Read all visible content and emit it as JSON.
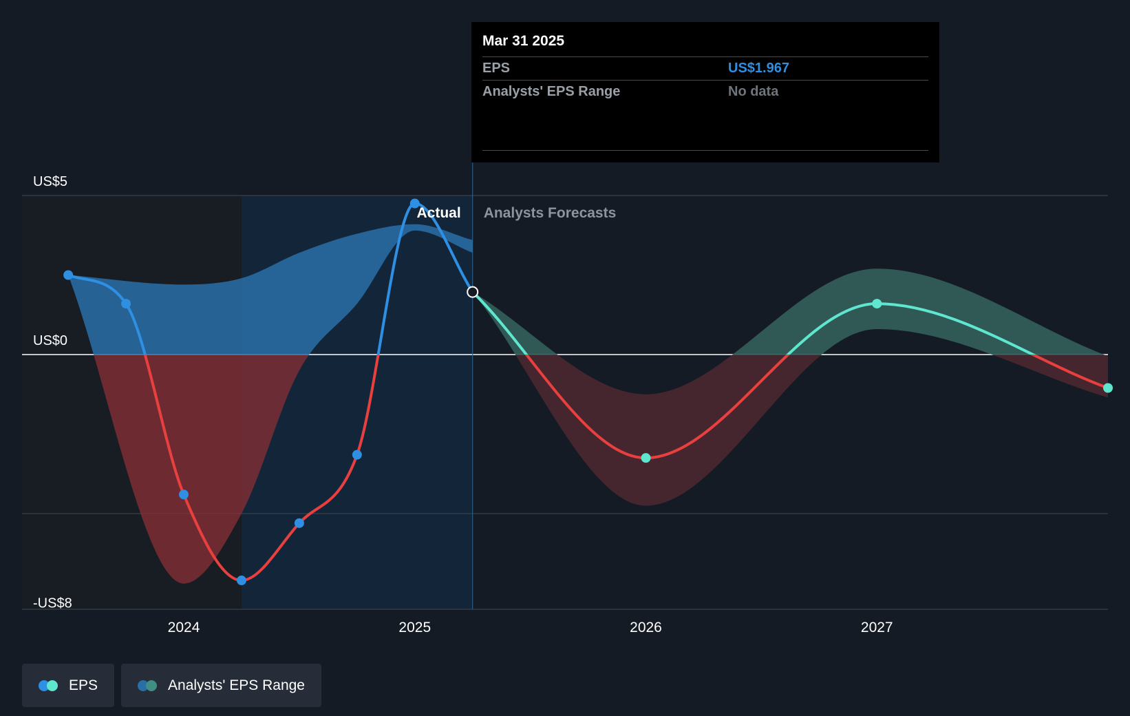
{
  "tooltip": {
    "date": "Mar 31 2025",
    "rows": [
      {
        "label": "EPS",
        "value": "US$1.967"
      },
      {
        "label": "Analysts' EPS Range",
        "value": "No data"
      }
    ]
  },
  "region_labels": {
    "actual": "Actual",
    "forecast": "Analysts Forecasts"
  },
  "legend": {
    "eps": "EPS",
    "range": "Analysts' EPS Range"
  },
  "colors": {
    "background": "#151b24",
    "eps_positive_past": "#2e8fe3",
    "eps_positive_forecast": "#5ee6cf",
    "eps_negative": "#e8403f",
    "range_past_positive": "#2a6ea8",
    "range_past_negative": "#8b2f36",
    "range_forecast_positive": "#33605c",
    "range_forecast_negative": "#4a2830",
    "highlight_band": "#132539"
  },
  "chart_data": {
    "type": "line",
    "title": "",
    "xlabel": "",
    "ylabel": "",
    "y_tick_labels": [
      {
        "value": 5,
        "label": "US$5"
      },
      {
        "value": 0,
        "label": "US$0"
      },
      {
        "value": -8,
        "label": "-US$8"
      }
    ],
    "gridline_values": [
      5,
      0,
      -5
    ],
    "ylim": [
      -8,
      5
    ],
    "x_ticks": [
      {
        "value": 2024.0,
        "label": "2024"
      },
      {
        "value": 2025.0,
        "label": "2025"
      },
      {
        "value": 2026.0,
        "label": "2026"
      },
      {
        "value": 2027.0,
        "label": "2027"
      }
    ],
    "xlim": [
      2023.3,
      2028.0
    ],
    "actual_forecast_divider": 2025.25,
    "highlight_band": [
      2024.25,
      2025.25
    ],
    "dark_band": [
      2023.3,
      2024.25
    ],
    "series": [
      {
        "name": "EPS",
        "segment": "actual",
        "points": [
          {
            "x": 2023.5,
            "y": 2.5
          },
          {
            "x": 2023.75,
            "y": 1.6
          },
          {
            "x": 2024.0,
            "y": -4.4
          },
          {
            "x": 2024.25,
            "y": -7.1
          },
          {
            "x": 2024.5,
            "y": -5.3
          },
          {
            "x": 2024.75,
            "y": -3.15
          },
          {
            "x": 2025.0,
            "y": 4.75
          },
          {
            "x": 2025.25,
            "y": 1.967
          }
        ]
      },
      {
        "name": "EPS",
        "segment": "forecast",
        "points": [
          {
            "x": 2025.25,
            "y": 1.967
          },
          {
            "x": 2026.0,
            "y": -3.25
          },
          {
            "x": 2027.0,
            "y": 1.6
          },
          {
            "x": 2028.0,
            "y": -1.05
          }
        ]
      }
    ],
    "range_past": {
      "name": "Analysts' EPS Range",
      "x": [
        2023.5,
        2024.0,
        2024.25,
        2024.5,
        2024.75,
        2025.0,
        2025.25
      ],
      "high": [
        2.5,
        2.2,
        2.4,
        3.2,
        3.8,
        4.1,
        3.6
      ],
      "low": [
        2.5,
        -7.2,
        -5.0,
        -0.5,
        1.6,
        3.9,
        3.2
      ]
    },
    "range_forecast": {
      "name": "Analysts' EPS Range",
      "x": [
        2025.25,
        2026.0,
        2027.0,
        2028.0
      ],
      "high": [
        1.967,
        -1.25,
        2.7,
        -0.05
      ],
      "low": [
        1.967,
        -4.75,
        0.8,
        -1.35
      ]
    }
  }
}
